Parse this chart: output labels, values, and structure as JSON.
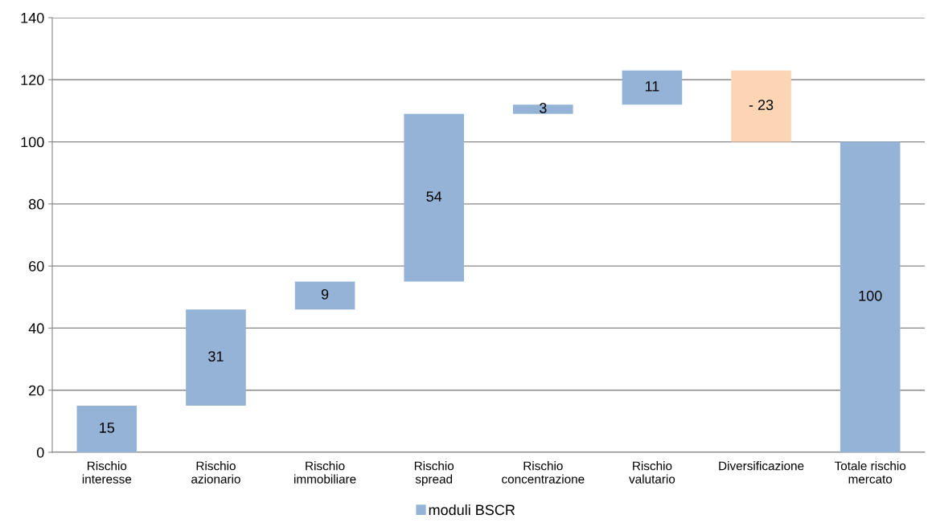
{
  "chart_data": {
    "type": "bar",
    "categories": [
      "Rischio\ninteresse",
      "Rischio\nazionario",
      "Rischio\nimmobiliare",
      "Rischio\nspread",
      "Rischio\nconcentrazione",
      "Rischio\nvalutario",
      "Diversificazione",
      "Totale rischio\nmercato"
    ],
    "series": [
      {
        "name": "moduli BSCR",
        "color": "#95b3d7",
        "colors": [
          "#95b3d7",
          "#95b3d7",
          "#95b3d7",
          "#95b3d7",
          "#95b3d7",
          "#95b3d7",
          "#fcd5b5",
          "#95b3d7"
        ],
        "values": [
          15,
          31,
          9,
          54,
          3,
          11,
          -23,
          100
        ],
        "base": [
          0,
          15,
          46,
          55,
          109,
          112,
          123,
          0
        ],
        "value_labels": [
          "15",
          "31",
          "9",
          "54",
          "3",
          "11",
          "- 23",
          "100"
        ]
      }
    ],
    "ylim": [
      0,
      140
    ],
    "yticks": [
      0,
      20,
      40,
      60,
      80,
      100,
      120,
      140
    ],
    "grid": "y",
    "legend": "bottom"
  }
}
